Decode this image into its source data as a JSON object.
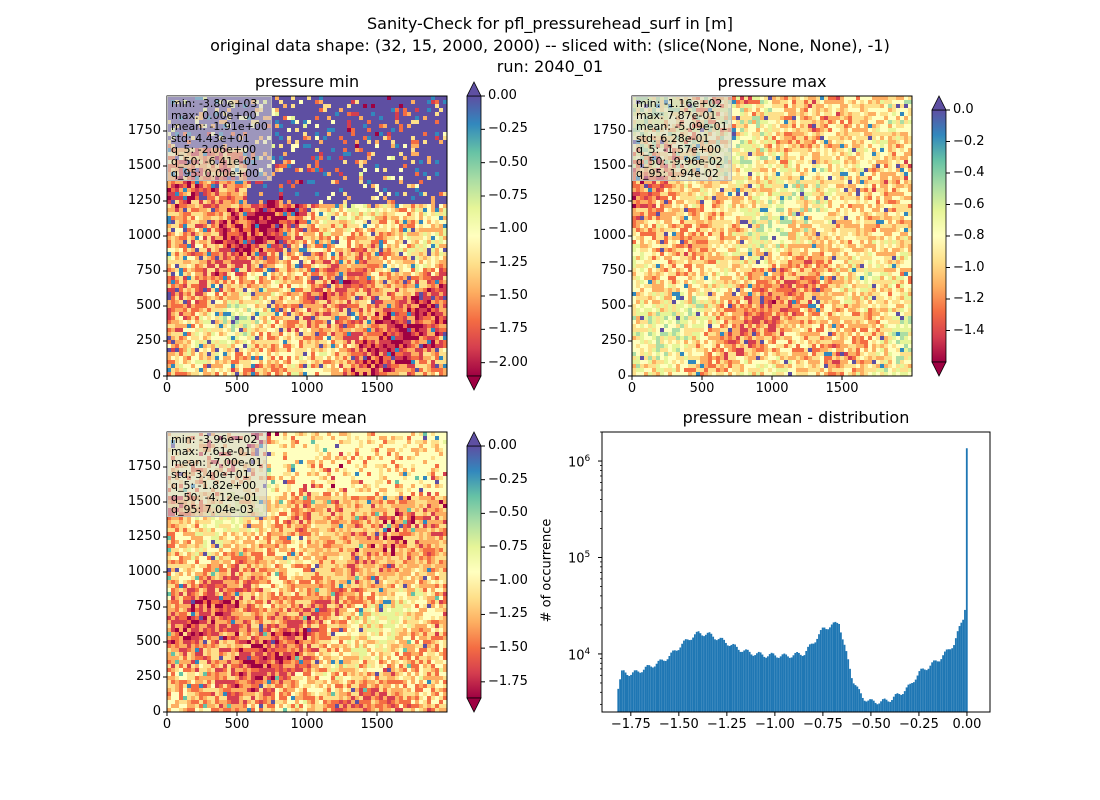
{
  "figure": {
    "title_lines": [
      "Sanity-Check for pfl_pressurehead_surf in [m]",
      "original data shape: (32, 15, 2000, 2000) -- sliced with: (slice(None, None, None), -1)",
      "run: 2040_01"
    ]
  },
  "chart_data": [
    {
      "type": "heatmap",
      "title": "pressure min",
      "colormap": "Spectral",
      "colorbar_range": [
        -2.1,
        0.0
      ],
      "colorbar_ticks": [
        "0.00",
        "−0.25",
        "−0.50",
        "−0.75",
        "−1.00",
        "−1.25",
        "−1.50",
        "−1.75",
        "−2.00"
      ],
      "colorbar_extend": "both",
      "x_ticks": [
        "0",
        "500",
        "1000",
        "1500"
      ],
      "y_ticks": [
        "0",
        "250",
        "500",
        "750",
        "1000",
        "1250",
        "1500",
        "1750"
      ],
      "xlim": [
        0,
        2000
      ],
      "ylim": [
        0,
        2000
      ],
      "stats": [
        "min: -3.80e+03",
        "max: 0.00e+00",
        "mean: -1.91e+00",
        "std: 4.43e+01",
        "q_5: -2.06e+00",
        "q_50: -6.41e-01",
        "q_95: 0.00e+00"
      ]
    },
    {
      "type": "heatmap",
      "title": "pressure max",
      "colormap": "Spectral",
      "colorbar_range": [
        -1.6,
        0.0
      ],
      "colorbar_ticks": [
        "0.0",
        "−0.2",
        "−0.4",
        "−0.6",
        "−0.8",
        "−1.0",
        "−1.2",
        "−1.4"
      ],
      "colorbar_extend": "both",
      "x_ticks": [
        "0",
        "500",
        "1000",
        "1500"
      ],
      "y_ticks": [
        "0",
        "250",
        "500",
        "750",
        "1000",
        "1250",
        "1500",
        "1750"
      ],
      "xlim": [
        0,
        2000
      ],
      "ylim": [
        0,
        2000
      ],
      "stats": [
        "min: -1.16e+02",
        "max: 7.87e-01",
        "mean: -5.09e-01",
        "std: 6.28e-01",
        "q_5: -1.57e+00",
        "q_50: -9.96e-02",
        "q_95: 1.94e-02"
      ]
    },
    {
      "type": "heatmap",
      "title": "pressure mean",
      "colormap": "Spectral",
      "colorbar_range": [
        -1.87,
        0.0
      ],
      "colorbar_ticks": [
        "0.00",
        "−0.25",
        "−0.50",
        "−0.75",
        "−1.00",
        "−1.25",
        "−1.50",
        "−1.75"
      ],
      "colorbar_extend": "both",
      "x_ticks": [
        "0",
        "500",
        "1000",
        "1500"
      ],
      "y_ticks": [
        "0",
        "250",
        "500",
        "750",
        "1000",
        "1250",
        "1500",
        "1750"
      ],
      "xlim": [
        0,
        2000
      ],
      "ylim": [
        0,
        2000
      ],
      "stats": [
        "min: -3.96e+02",
        "max: 7.61e-01",
        "mean: -7.00e-01",
        "std: 3.40e+01",
        "q_5: -1.82e+00",
        "q_50: -4.12e-01",
        "q_95: 7.04e-03"
      ]
    },
    {
      "type": "bar",
      "title": "pressure mean - distribution",
      "ylabel": "# of occurrence",
      "y_scale": "log",
      "xlim": [
        -1.9,
        0.12
      ],
      "ylim": [
        2500,
        2000000
      ],
      "x_ticks": [
        -1.75,
        -1.5,
        -1.25,
        -1.0,
        -0.75,
        -0.5,
        -0.25,
        0.0
      ],
      "x_tick_labels": [
        "−1.75",
        "−1.50",
        "−1.25",
        "−1.00",
        "−0.75",
        "−0.50",
        "−0.25",
        "0.00"
      ],
      "y_ticks": [
        10000,
        100000,
        1000000
      ],
      "y_tick_bases": [
        "10",
        "10",
        "10"
      ],
      "y_tick_exps": [
        "4",
        "5",
        "6"
      ],
      "color": "#1f77b4",
      "bins": {
        "x": [
          -1.82,
          -1.8,
          -1.75,
          -1.7,
          -1.65,
          -1.6,
          -1.55,
          -1.5,
          -1.45,
          -1.4,
          -1.35,
          -1.3,
          -1.25,
          -1.2,
          -1.15,
          -1.1,
          -1.05,
          -1.0,
          -0.95,
          -0.9,
          -0.85,
          -0.8,
          -0.75,
          -0.7,
          -0.67,
          -0.65,
          -0.62,
          -0.6,
          -0.57,
          -0.55,
          -0.52,
          -0.5,
          -0.47,
          -0.45,
          -0.4,
          -0.35,
          -0.3,
          -0.27,
          -0.25,
          -0.2,
          -0.15,
          -0.1,
          -0.07,
          -0.05,
          -0.02,
          -0.01,
          0.0
        ],
        "count": [
          4500,
          6500,
          6200,
          6800,
          7500,
          8300,
          9600,
          12000,
          14500,
          16500,
          16000,
          14500,
          13000,
          11500,
          10500,
          10000,
          9700,
          9700,
          9500,
          9800,
          10200,
          13500,
          18500,
          20000,
          21500,
          14000,
          8000,
          5500,
          4200,
          3600,
          3300,
          3200,
          3200,
          3200,
          3400,
          3900,
          4700,
          5800,
          6500,
          7500,
          8800,
          11000,
          13000,
          17000,
          25000,
          37000,
          1400000
        ]
      }
    }
  ]
}
